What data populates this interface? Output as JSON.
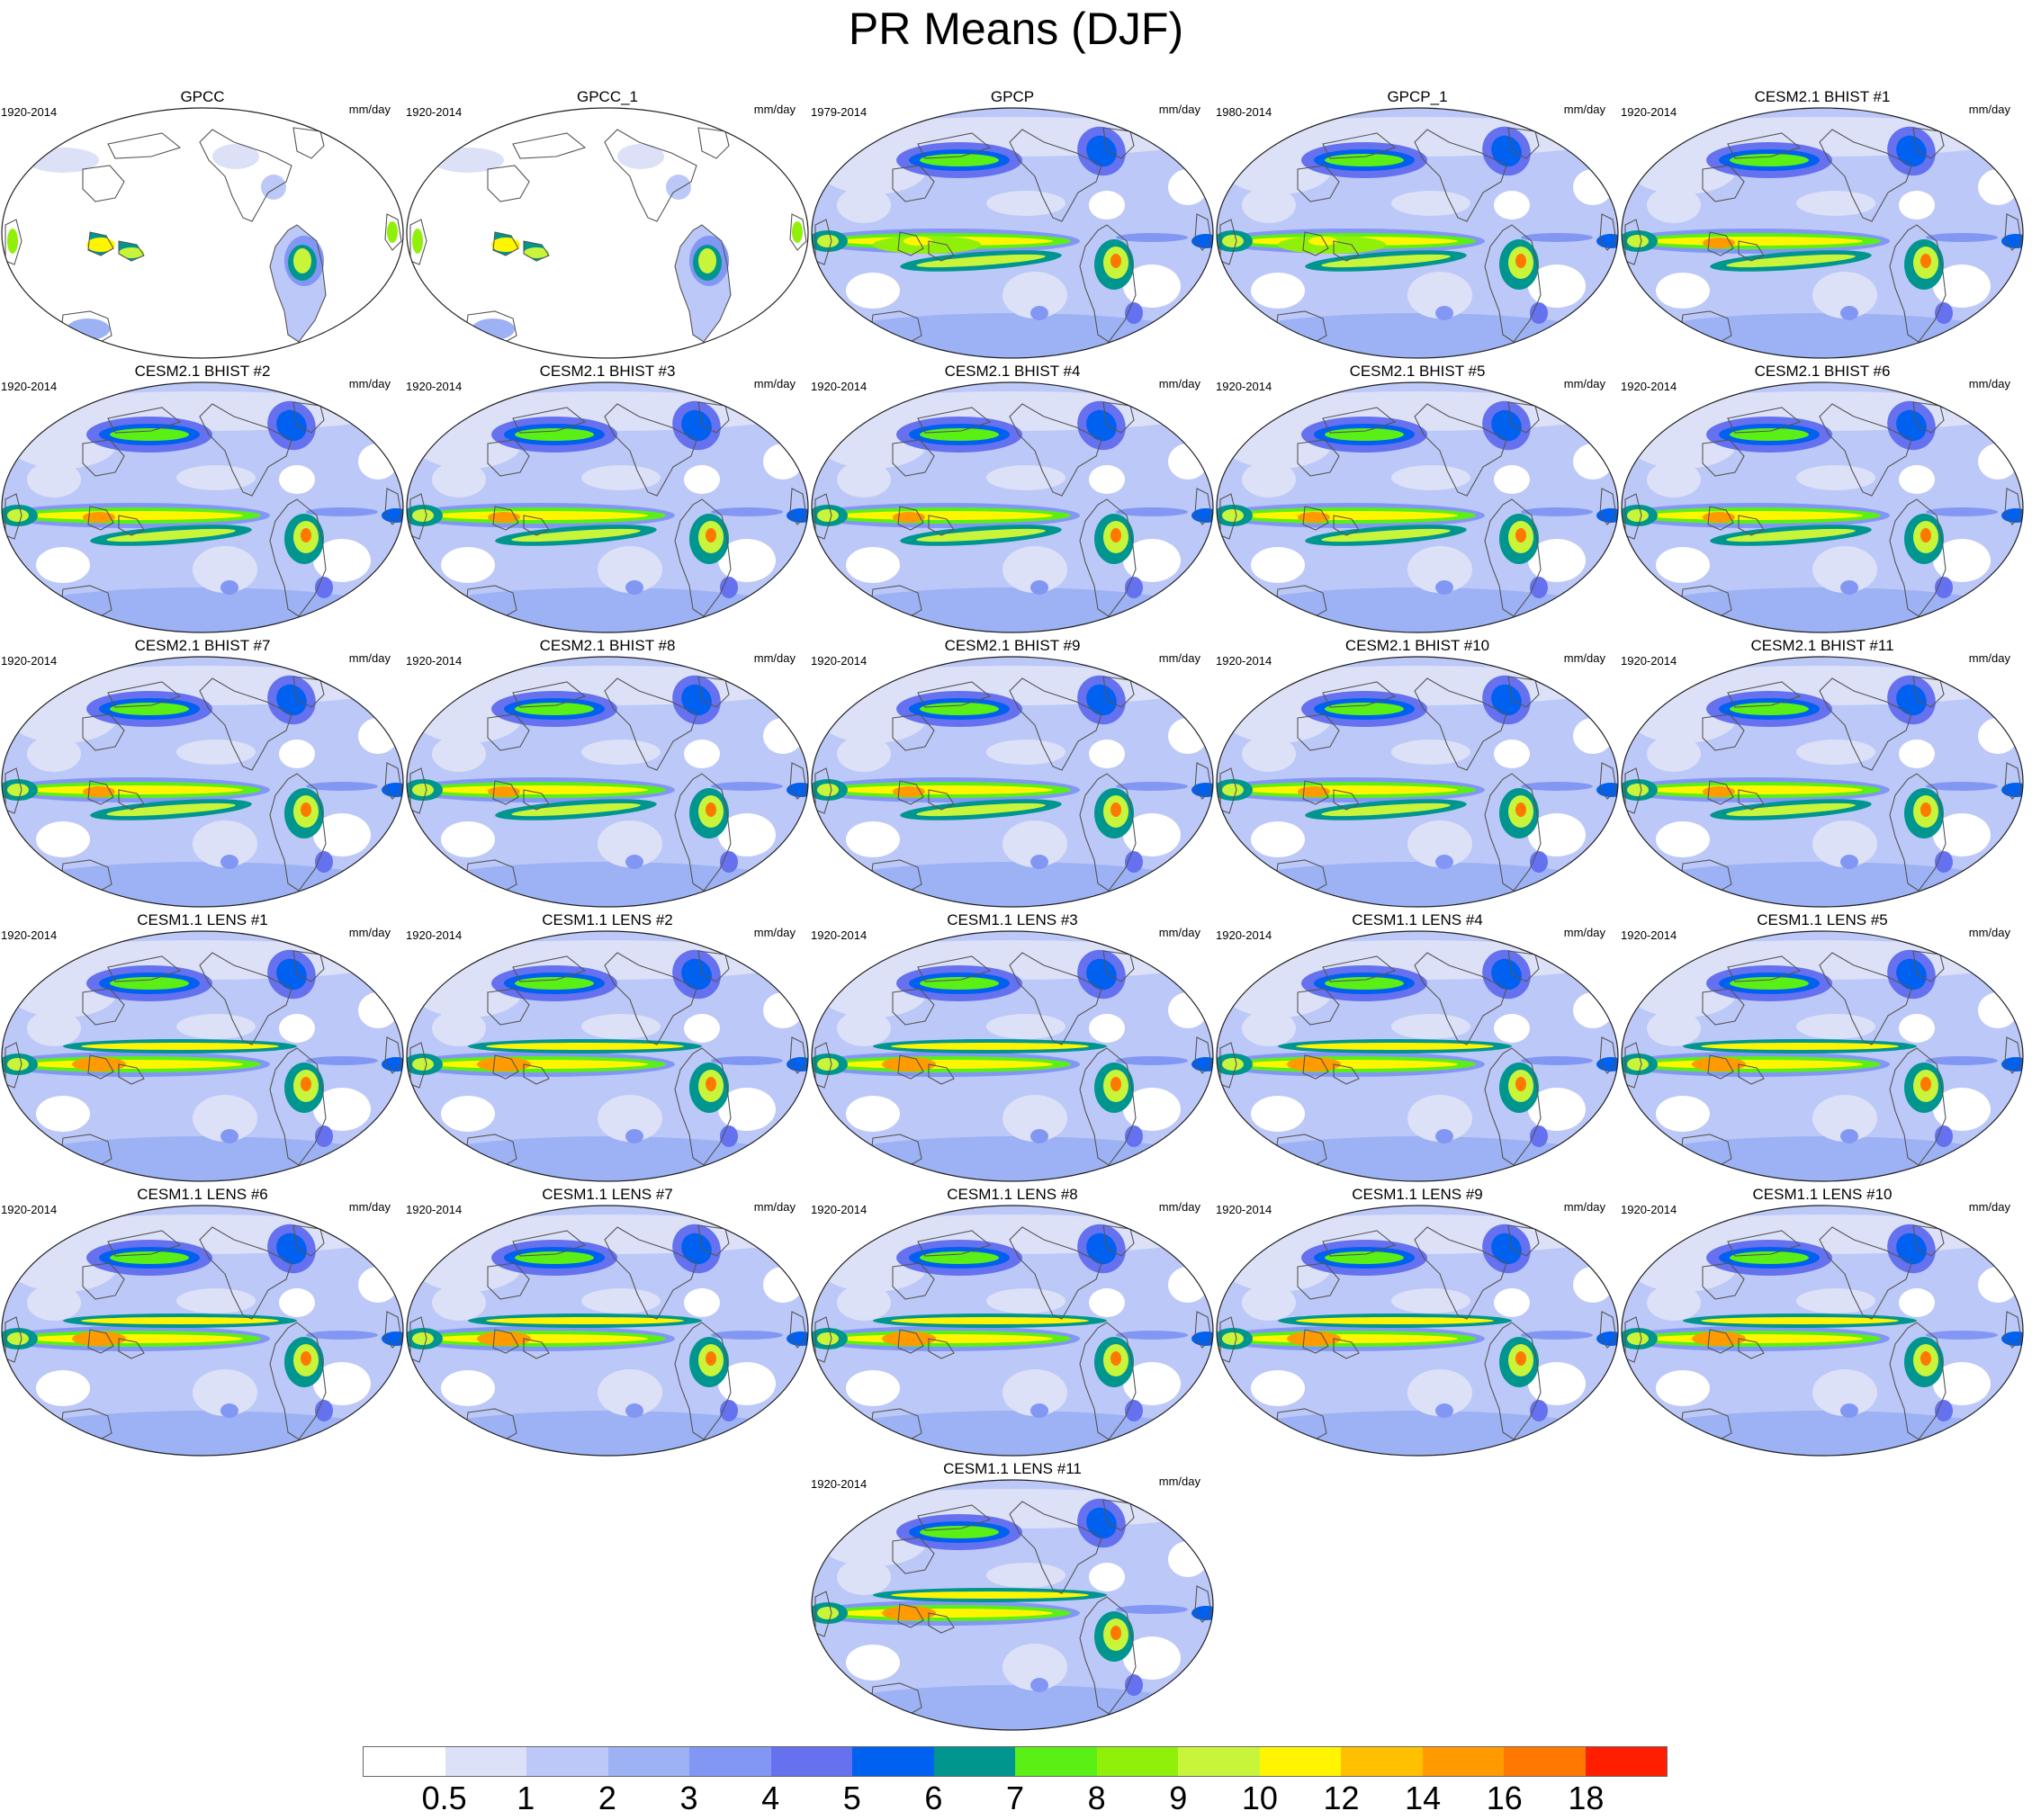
{
  "title": "PR Means (DJF)",
  "units_label": "mm/day",
  "panels": [
    {
      "title": "GPCC",
      "years": "1920-2014",
      "type": "obs-land"
    },
    {
      "title": "GPCC_1",
      "years": "1920-2014",
      "type": "obs-land"
    },
    {
      "title": "GPCP",
      "years": "1979-2014",
      "type": "obs-global"
    },
    {
      "title": "GPCP_1",
      "years": "1980-2014",
      "type": "obs-global"
    },
    {
      "title": "CESM2.1 BHIST #1",
      "years": "1920-2014",
      "type": "cesm2"
    },
    {
      "title": "CESM2.1 BHIST #2",
      "years": "1920-2014",
      "type": "cesm2"
    },
    {
      "title": "CESM2.1 BHIST #3",
      "years": "1920-2014",
      "type": "cesm2"
    },
    {
      "title": "CESM2.1 BHIST #4",
      "years": "1920-2014",
      "type": "cesm2"
    },
    {
      "title": "CESM2.1 BHIST #5",
      "years": "1920-2014",
      "type": "cesm2"
    },
    {
      "title": "CESM2.1 BHIST #6",
      "years": "1920-2014",
      "type": "cesm2"
    },
    {
      "title": "CESM2.1 BHIST #7",
      "years": "1920-2014",
      "type": "cesm2"
    },
    {
      "title": "CESM2.1 BHIST #8",
      "years": "1920-2014",
      "type": "cesm2"
    },
    {
      "title": "CESM2.1 BHIST #9",
      "years": "1920-2014",
      "type": "cesm2"
    },
    {
      "title": "CESM2.1 BHIST #10",
      "years": "1920-2014",
      "type": "cesm2"
    },
    {
      "title": "CESM2.1 BHIST #11",
      "years": "1920-2014",
      "type": "cesm2"
    },
    {
      "title": "CESM1.1 LENS #1",
      "years": "1920-2014",
      "type": "cesm1"
    },
    {
      "title": "CESM1.1 LENS #2",
      "years": "1920-2014",
      "type": "cesm1"
    },
    {
      "title": "CESM1.1 LENS #3",
      "years": "1920-2014",
      "type": "cesm1"
    },
    {
      "title": "CESM1.1 LENS #4",
      "years": "1920-2014",
      "type": "cesm1"
    },
    {
      "title": "CESM1.1 LENS #5",
      "years": "1920-2014",
      "type": "cesm1"
    },
    {
      "title": "CESM1.1 LENS #6",
      "years": "1920-2014",
      "type": "cesm1"
    },
    {
      "title": "CESM1.1 LENS #7",
      "years": "1920-2014",
      "type": "cesm1"
    },
    {
      "title": "CESM1.1 LENS #8",
      "years": "1920-2014",
      "type": "cesm1"
    },
    {
      "title": "CESM1.1 LENS #9",
      "years": "1920-2014",
      "type": "cesm1"
    },
    {
      "title": "CESM1.1 LENS #10",
      "years": "1920-2014",
      "type": "cesm1"
    },
    {
      "title": "CESM1.1 LENS #11",
      "years": "1920-2014",
      "type": "cesm1"
    }
  ],
  "colorbar": {
    "levels": [
      "0.5",
      "1",
      "2",
      "3",
      "4",
      "5",
      "6",
      "7",
      "8",
      "9",
      "10",
      "12",
      "14",
      "16",
      "18"
    ],
    "colors": [
      "#ffffff",
      "#dce1f7",
      "#bcc8f7",
      "#9db2f5",
      "#8297f3",
      "#6571ee",
      "#0060f0",
      "#00968f",
      "#5af016",
      "#91f00a",
      "#c8f53a",
      "#fff500",
      "#ffc000",
      "#ff9a00",
      "#ff7800",
      "#ff1e00"
    ]
  }
}
